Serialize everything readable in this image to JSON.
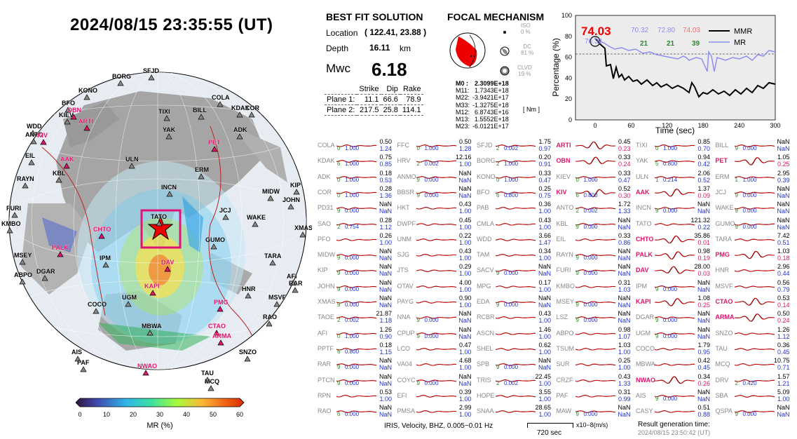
{
  "datetime": "2024/08/15  23:35:55 (UT)",
  "best_fit": {
    "title": "BEST FIT SOLUTION",
    "location_label": "Location",
    "location_value": "( 122.41,  23.88 )",
    "depth_label": "Depth",
    "depth_value": "16.11",
    "depth_unit": "km",
    "mw_label": "Mwc",
    "mw_value": "6.18",
    "headers": [
      "Strike",
      "Dip",
      "Rake"
    ],
    "plane1_label": "Plane 1:",
    "plane1": [
      "11.1",
      "66.6",
      "78.9"
    ],
    "plane2_label": "Plane 2:",
    "plane2": [
      "217.5",
      "25.8",
      "114.1"
    ]
  },
  "focal": {
    "title": "FOCAL MECHANISM",
    "iso_label": "ISO",
    "iso_pct": "0 %",
    "dc_label": "DC",
    "dc_pct": "81 %",
    "clvd_label": "CLVD",
    "clvd_pct": "19 %",
    "tensor": [
      {
        "k": "M0 :",
        "v": "2.3099E+18"
      },
      {
        "k": "M11:",
        "v": "1.7343E+18"
      },
      {
        "k": "M22:",
        "v": "-3.9421E+17"
      },
      {
        "k": "M33:",
        "v": "-1.3275E+18"
      },
      {
        "k": "M12:",
        "v": "6.8743E+16"
      },
      {
        "k": "M13:",
        "v": "1.5552E+18"
      },
      {
        "k": "M23:",
        "v": "-6.0121E+17"
      }
    ],
    "unit": "[ Nm ]"
  },
  "mr_plot": {
    "ylabel": "Percentage (%)",
    "xlabel": "Time (sec)",
    "yticks": [
      "0",
      "20",
      "40",
      "60",
      "80",
      "100"
    ],
    "xticks": [
      "0",
      "60",
      "120",
      "180",
      "240",
      "300"
    ],
    "big_value": "74.03",
    "small_values": [
      "70.32",
      "72.80",
      "74.03"
    ],
    "counts": [
      "21",
      "21",
      "39"
    ],
    "sub_value": "70.32",
    "legend": [
      "MMR",
      "MR"
    ]
  },
  "colorbar": {
    "ticks": [
      "0",
      "10",
      "20",
      "30",
      "40",
      "50",
      "60"
    ],
    "label": "MR (%)"
  },
  "map_labels": [
    {
      "t": "SFJD",
      "c": "k"
    },
    {
      "t": "BORG",
      "c": "k"
    },
    {
      "t": "KONO",
      "c": "k"
    },
    {
      "t": "BFO",
      "c": "k"
    },
    {
      "t": "OBN",
      "c": "r"
    },
    {
      "t": "KIEV",
      "c": "k"
    },
    {
      "t": "ARTI",
      "c": "r"
    },
    {
      "t": "WDD",
      "c": "k"
    },
    {
      "t": "ANTO",
      "c": "k"
    },
    {
      "t": "KIV",
      "c": "r"
    },
    {
      "t": "COLA",
      "c": "k"
    },
    {
      "t": "KDAK",
      "c": "k"
    },
    {
      "t": "COR",
      "c": "k"
    },
    {
      "t": "TIXI",
      "c": "k"
    },
    {
      "t": "BILL",
      "c": "k"
    },
    {
      "t": "YAK",
      "c": "k"
    },
    {
      "t": "ADK",
      "c": "k"
    },
    {
      "t": "PET",
      "c": "r"
    },
    {
      "t": "EIL",
      "c": "k"
    },
    {
      "t": "AAK",
      "c": "r"
    },
    {
      "t": "ULN",
      "c": "k"
    },
    {
      "t": "KBL",
      "c": "k"
    },
    {
      "t": "RAYN",
      "c": "k"
    },
    {
      "t": "ERM",
      "c": "k"
    },
    {
      "t": "INCN",
      "c": "k"
    },
    {
      "t": "MIDW",
      "c": "k"
    },
    {
      "t": "KIP",
      "c": "k"
    },
    {
      "t": "JOHN",
      "c": "k"
    },
    {
      "t": "FURI",
      "c": "k"
    },
    {
      "t": "JCJ",
      "c": "k"
    },
    {
      "t": "WAKE",
      "c": "k"
    },
    {
      "t": "KMBO",
      "c": "k"
    },
    {
      "t": "TATO",
      "c": "k"
    },
    {
      "t": "XMAS",
      "c": "k"
    },
    {
      "t": "CHTO",
      "c": "r"
    },
    {
      "t": "GUMO",
      "c": "k"
    },
    {
      "t": "PALK",
      "c": "r"
    },
    {
      "t": "MSEY",
      "c": "k"
    },
    {
      "t": "TARA",
      "c": "k"
    },
    {
      "t": "IPM",
      "c": "k"
    },
    {
      "t": "DAV",
      "c": "r"
    },
    {
      "t": "ABPO",
      "c": "k"
    },
    {
      "t": "DGAR",
      "c": "k"
    },
    {
      "t": "AFI",
      "c": "k"
    },
    {
      "t": "RAR",
      "c": "k"
    },
    {
      "t": "KAPI",
      "c": "r"
    },
    {
      "t": "HNR",
      "c": "k"
    },
    {
      "t": "UGM",
      "c": "k"
    },
    {
      "t": "PMG",
      "c": "r"
    },
    {
      "t": "MSVF",
      "c": "k"
    },
    {
      "t": "COCO",
      "c": "k"
    },
    {
      "t": "RAO",
      "c": "k"
    },
    {
      "t": "MBWA",
      "c": "k"
    },
    {
      "t": "CTAO",
      "c": "r"
    },
    {
      "t": "ARMA",
      "c": "r"
    },
    {
      "t": "AIS",
      "c": "k"
    },
    {
      "t": "SNZO",
      "c": "k"
    },
    {
      "t": "PAF",
      "c": "k"
    },
    {
      "t": "NWAO",
      "c": "r"
    },
    {
      "t": "TAU",
      "c": "k"
    },
    {
      "t": "MCQ",
      "c": "k"
    }
  ],
  "stations": [
    [
      {
        "s": "COLA",
        "m": "0.50",
        "v": "1.24",
        "n": "0",
        "c": "1.000",
        "r": false
      },
      {
        "s": "FFC",
        "m": "0.50",
        "v": "1.28",
        "n": "0",
        "c": "1.000",
        "r": false
      },
      {
        "s": "SFJD",
        "m": "1.75",
        "v": "0.97",
        "n": "2",
        "c": "0.002",
        "r": false
      },
      {
        "s": "ARTI",
        "m": "0.45",
        "v": "0.23",
        "n": "",
        "c": "",
        "r": true
      },
      {
        "s": "TIXI",
        "m": "0.85",
        "v": "0.70",
        "n": "0",
        "c": "1.000",
        "r": false
      },
      {
        "s": "BILL",
        "m": "NaN",
        "v": "NaN",
        "n": "9",
        "c": "0.000",
        "r": false
      }
    ],
    [
      {
        "s": "KDAK",
        "m": "0.75",
        "v": "0.85",
        "n": "6",
        "c": "1.000",
        "r": false
      },
      {
        "s": "HRV",
        "m": "12.16",
        "v": "1.00",
        "n": "2",
        "c": "0.002",
        "r": false
      },
      {
        "s": "BORG",
        "m": "0.20",
        "v": "0.91",
        "n": "2",
        "c": "1.000",
        "r": false
      },
      {
        "s": "OBN",
        "m": "0.33",
        "v": "0.24",
        "n": "",
        "c": "",
        "r": true
      },
      {
        "s": "YAK",
        "m": "0.94",
        "v": "0.42",
        "n": "5",
        "c": "0.800",
        "r": false
      },
      {
        "s": "PET",
        "m": "1.05",
        "v": "0.25",
        "n": "",
        "c": "",
        "r": true
      }
    ],
    [
      {
        "s": "ADK",
        "m": "0.18",
        "v": "0.53",
        "n": "0",
        "c": "1.000",
        "r": false
      },
      {
        "s": "ANMO",
        "m": "NaN",
        "v": "NaN",
        "n": "9",
        "c": "0.000",
        "r": false
      },
      {
        "s": "KONO",
        "m": "0.33",
        "v": "0.47",
        "n": "0",
        "c": "1.000",
        "r": false
      },
      {
        "s": "KIEV",
        "m": "0.33",
        "v": "0.47",
        "n": "0",
        "c": "1.000",
        "r": false
      },
      {
        "s": "ULN",
        "m": "2.06",
        "v": "0.52",
        "n": "1",
        "c": "0.214",
        "r": false
      },
      {
        "s": "ERM",
        "m": "2.95",
        "v": "0.39",
        "n": "1",
        "c": "1.000",
        "r": false
      }
    ],
    [
      {
        "s": "COR",
        "m": "0.28",
        "v": "1.36",
        "n": "0",
        "c": "1.000",
        "r": false
      },
      {
        "s": "BBSR",
        "m": "NaN",
        "v": "NaN",
        "n": "9",
        "c": "0.000",
        "r": false
      },
      {
        "s": "BFO",
        "m": "0.25",
        "v": "0.75",
        "n": "6",
        "c": "0.800",
        "r": false
      },
      {
        "s": "KIV",
        "m": "0.52",
        "v": "0.30",
        "n": "6",
        "c": "0.800",
        "r": true
      },
      {
        "s": "AAK",
        "m": "1.37",
        "v": "0.09",
        "n": "",
        "c": "",
        "r": true
      },
      {
        "s": "JCJ",
        "m": "NaN",
        "v": "NaN",
        "n": "9",
        "c": "0.000",
        "r": false
      }
    ],
    [
      {
        "s": "PD31",
        "m": "NaN",
        "v": "NaN",
        "n": "9",
        "c": "0.000",
        "r": false
      },
      {
        "s": "HKT",
        "m": "0.43",
        "v": "1.00",
        "n": "",
        "c": "",
        "r": false
      },
      {
        "s": "PAB",
        "m": "0.36",
        "v": "1.00",
        "n": "",
        "c": "",
        "r": false
      },
      {
        "s": "ANTO",
        "m": "1.72",
        "v": "1.33",
        "n": "2",
        "c": "0.002",
        "r": false
      },
      {
        "s": "INCN",
        "m": "NaN",
        "v": "NaN",
        "n": "9",
        "c": "0.000",
        "r": false
      },
      {
        "s": "WAKE",
        "m": "NaN",
        "v": "NaN",
        "n": "9",
        "c": "0.000",
        "r": false
      }
    ],
    [
      {
        "s": "SAO",
        "m": "0.28",
        "v": "1.12",
        "n": "2",
        "c": "0.754",
        "r": false
      },
      {
        "s": "DWPF",
        "m": "0.45",
        "v": "1.00",
        "n": "",
        "c": "",
        "r": false
      },
      {
        "s": "CMLA",
        "m": "0.43",
        "v": "1.00",
        "n": "",
        "c": "",
        "r": false
      },
      {
        "s": "KBL",
        "m": "NaN",
        "v": "NaN",
        "n": "9",
        "c": "0.000",
        "r": false
      },
      {
        "s": "TATO",
        "m": "121.32",
        "v": "0.22",
        "n": "",
        "c": "",
        "r": false
      },
      {
        "s": "GUMO",
        "m": "NaN",
        "v": "NaN",
        "n": "9",
        "c": "0.000",
        "r": false
      }
    ],
    [
      {
        "s": "PFO",
        "m": "0.26",
        "v": "1.00",
        "n": "",
        "c": "",
        "r": false
      },
      {
        "s": "UNM",
        "m": "0.22",
        "v": "1.00",
        "n": "",
        "c": "",
        "r": false
      },
      {
        "s": "WDD",
        "m": "3.66",
        "v": "1.47",
        "n": "",
        "c": "",
        "r": false
      },
      {
        "s": "EIL",
        "m": "0.33",
        "v": "0.86",
        "n": "",
        "c": "",
        "r": false
      },
      {
        "s": "CHTO",
        "m": "35.86",
        "v": "0.01",
        "n": "",
        "c": "",
        "r": true
      },
      {
        "s": "TARA",
        "m": "7.42",
        "v": "0.51",
        "n": "",
        "c": "",
        "r": false
      }
    ],
    [
      {
        "s": "MIDW",
        "m": "NaN",
        "v": "NaN",
        "n": "9",
        "c": "0.000",
        "r": false
      },
      {
        "s": "SJG",
        "m": "0.43",
        "v": "1.00",
        "n": "",
        "c": "",
        "r": false
      },
      {
        "s": "TAM",
        "m": "0.34",
        "v": "1.00",
        "n": "",
        "c": "",
        "r": false
      },
      {
        "s": "RAYN",
        "m": "NaN",
        "v": "NaN",
        "n": "9",
        "c": "0.000",
        "r": false
      },
      {
        "s": "PALK",
        "m": "0.98",
        "v": "0.19",
        "n": "",
        "c": "",
        "r": true
      },
      {
        "s": "PMG",
        "m": "1.03",
        "v": "0.18",
        "n": "",
        "c": "",
        "r": true
      }
    ],
    [
      {
        "s": "KIP",
        "m": "NaN",
        "v": "NaN",
        "n": "9",
        "c": "0.000",
        "r": false
      },
      {
        "s": "JTS",
        "m": "0.29",
        "v": "1.00",
        "n": "",
        "c": "",
        "r": false
      },
      {
        "s": "SACV",
        "m": "NaN",
        "v": "NaN",
        "n": "9",
        "c": "0.000",
        "r": false
      },
      {
        "s": "FURI",
        "m": "NaN",
        "v": "NaN",
        "n": "9",
        "c": "0.000",
        "r": false
      },
      {
        "s": "DAV",
        "m": "28.00",
        "v": "0.03",
        "n": "",
        "c": "",
        "r": true
      },
      {
        "s": "HNR",
        "m": "2.96",
        "v": "0.44",
        "n": "",
        "c": "",
        "r": false
      }
    ],
    [
      {
        "s": "JOHN",
        "m": "NaN",
        "v": "NaN",
        "n": "9",
        "c": "0.000",
        "r": false
      },
      {
        "s": "OTAV",
        "m": "4.00",
        "v": "1.00",
        "n": "",
        "c": "",
        "r": false
      },
      {
        "s": "MPG",
        "m": "0.17",
        "v": "1.00",
        "n": "",
        "c": "",
        "r": false
      },
      {
        "s": "KMBO",
        "m": "0.31",
        "v": "1.03",
        "n": "",
        "c": "",
        "r": false
      },
      {
        "s": "IPM",
        "m": "NaN",
        "v": "NaN",
        "n": "9",
        "c": "0.000",
        "r": false
      },
      {
        "s": "MSVF",
        "m": "0.56",
        "v": "0.79",
        "n": "",
        "c": "",
        "r": false
      }
    ],
    [
      {
        "s": "XMAS",
        "m": "NaN",
        "v": "NaN",
        "n": "9",
        "c": "0.000",
        "r": false
      },
      {
        "s": "PAYG",
        "m": "0.90",
        "v": "1.00",
        "n": "",
        "c": "",
        "r": false
      },
      {
        "s": "EDA",
        "m": "NaN",
        "v": "NaN",
        "n": "9",
        "c": "0.000",
        "r": false
      },
      {
        "s": "MSEY",
        "m": "NaN",
        "v": "NaN",
        "n": "9",
        "c": "0.000",
        "r": false
      },
      {
        "s": "KAPI",
        "m": "1.08",
        "v": "0.25",
        "n": "",
        "c": "",
        "r": true
      },
      {
        "s": "CTAO",
        "m": "0.53",
        "v": "0.14",
        "n": "",
        "c": "",
        "r": true
      }
    ],
    [
      {
        "s": "TAOE",
        "m": "21.87",
        "v": "1.18",
        "n": "2",
        "c": "0.002",
        "r": false
      },
      {
        "s": "NNA",
        "m": "NaN",
        "v": "NaN",
        "n": "9",
        "c": "0.000",
        "r": false
      },
      {
        "s": "RCBR",
        "m": "0.43",
        "v": "1.00",
        "n": "",
        "c": "",
        "r": false
      },
      {
        "s": "LSZ",
        "m": "NaN",
        "v": "NaN",
        "n": "9",
        "c": "0.000",
        "r": false
      },
      {
        "s": "DGAR",
        "m": "NaN",
        "v": "NaN",
        "n": "9",
        "c": "0.000",
        "r": false
      },
      {
        "s": "ARMA",
        "m": "0.50",
        "v": "0.24",
        "n": "",
        "c": "",
        "r": true
      }
    ],
    [
      {
        "s": "AFI",
        "m": "1.26",
        "v": "0.90",
        "n": "0",
        "c": "1.000",
        "r": false
      },
      {
        "s": "CPUP",
        "m": "NaN",
        "v": "NaN",
        "n": "9",
        "c": "0.000",
        "r": false
      },
      {
        "s": "ASCN",
        "m": "1.46",
        "v": "1.00",
        "n": "",
        "c": "",
        "r": false
      },
      {
        "s": "ABPO",
        "m": "0.98",
        "v": "1.07",
        "n": "",
        "c": "",
        "r": false
      },
      {
        "s": "UGM",
        "m": "NaN",
        "v": "NaN",
        "n": "9",
        "c": "0.000",
        "r": false
      },
      {
        "s": "SNZO",
        "m": "1.26",
        "v": "1.12",
        "n": "",
        "c": "",
        "r": false
      }
    ],
    [
      {
        "s": "PPTF",
        "m": "0.18",
        "v": "1.15",
        "n": "6",
        "c": "0.800",
        "r": false
      },
      {
        "s": "LCO",
        "m": "0.47",
        "v": "1.00",
        "n": "",
        "c": "",
        "r": false
      },
      {
        "s": "SHEL",
        "m": "0.62",
        "v": "1.00",
        "n": "",
        "c": "",
        "r": false
      },
      {
        "s": "TSUM",
        "m": "1.03",
        "v": "1.00",
        "n": "",
        "c": "",
        "r": false
      },
      {
        "s": "COCO",
        "m": "1.79",
        "v": "0.95",
        "n": "",
        "c": "",
        "r": false
      },
      {
        "s": "TAU",
        "m": "0.36",
        "v": "0.45",
        "n": "",
        "c": "",
        "r": false
      }
    ],
    [
      {
        "s": "RAR",
        "m": "NaN",
        "v": "NaN",
        "n": "9",
        "c": "0.000",
        "r": false
      },
      {
        "s": "VA04",
        "m": "4.68",
        "v": "1.00",
        "n": "",
        "c": "",
        "r": false
      },
      {
        "s": "SPB",
        "m": "NaN",
        "v": "NaN",
        "n": "9",
        "c": "0.000",
        "r": false
      },
      {
        "s": "SUR",
        "m": "0.25",
        "v": "1.00",
        "n": "",
        "c": "",
        "r": false
      },
      {
        "s": "MBWA",
        "m": "0.42",
        "v": "0.45",
        "n": "",
        "c": "",
        "r": false
      },
      {
        "s": "MCQ",
        "m": "10.75",
        "v": "0.71",
        "n": "",
        "c": "",
        "r": false
      }
    ],
    [
      {
        "s": "PTCN",
        "m": "NaN",
        "v": "NaN",
        "n": "9",
        "c": "0.000",
        "r": false
      },
      {
        "s": "COYC",
        "m": "NaN",
        "v": "NaN",
        "n": "9",
        "c": "0.000",
        "r": false
      },
      {
        "s": "TRIS",
        "m": "22.45",
        "v": "1.00",
        "n": "2",
        "c": "0.002",
        "r": false
      },
      {
        "s": "CRZF",
        "m": "0.43",
        "v": "1.33",
        "n": "",
        "c": "",
        "r": false
      },
      {
        "s": "NWAO",
        "m": "0.34",
        "v": "0.26",
        "n": "",
        "c": "",
        "r": true
      },
      {
        "s": "DRV",
        "m": "1.57",
        "v": "1.21",
        "n": "2",
        "c": "0.420",
        "r": false
      }
    ],
    [
      {
        "s": "RPN",
        "m": "0.53",
        "v": "1.00",
        "n": "",
        "c": "",
        "r": false
      },
      {
        "s": "EFI",
        "m": "0.39",
        "v": "1.00",
        "n": "",
        "c": "",
        "r": false
      },
      {
        "s": "HOPE",
        "m": "3.55",
        "v": "1.00",
        "n": "",
        "c": "",
        "r": false
      },
      {
        "s": "PAF",
        "m": "0.31",
        "v": "0.99",
        "n": "",
        "c": "",
        "r": false
      },
      {
        "s": "AIS",
        "m": "NaN",
        "v": "NaN",
        "n": "9",
        "c": "0.000",
        "r": false
      },
      {
        "s": "SBA",
        "m": "5.09",
        "v": "1.00",
        "n": "",
        "c": "",
        "r": false
      }
    ],
    [
      {
        "s": "RAO",
        "m": "NaN",
        "v": "NaN",
        "n": "6",
        "c": "0.000",
        "r": false
      },
      {
        "s": "PMSA",
        "m": "2.99",
        "v": "1.00",
        "n": "",
        "c": "",
        "r": false
      },
      {
        "s": "SNAA",
        "m": "28.65",
        "v": "1.00",
        "n": "",
        "c": "",
        "r": false
      },
      {
        "s": "MAW",
        "m": "NaN",
        "v": "NaN",
        "n": "9",
        "c": "0.000",
        "r": false
      },
      {
        "s": "CASY",
        "m": "0.51",
        "v": "0.88",
        "n": "",
        "c": "",
        "r": false
      },
      {
        "s": "QSPA",
        "m": "NaN",
        "v": "NaN",
        "n": "9",
        "c": "0.000",
        "r": false
      }
    ]
  ],
  "footer": {
    "source": "IRIS, Velocity,   BHZ, 0.005−0.01 Hz",
    "scale": "720 sec",
    "unit": "x10−8(m/s)",
    "gen_label": "Result generation time:",
    "gen_time": "2024/08/15 23:50:42 (UT)"
  },
  "colors": {
    "red_station": "#e0126a",
    "mmr": "#000000",
    "mr": "#8f8ff0",
    "wave": "#b40000"
  }
}
